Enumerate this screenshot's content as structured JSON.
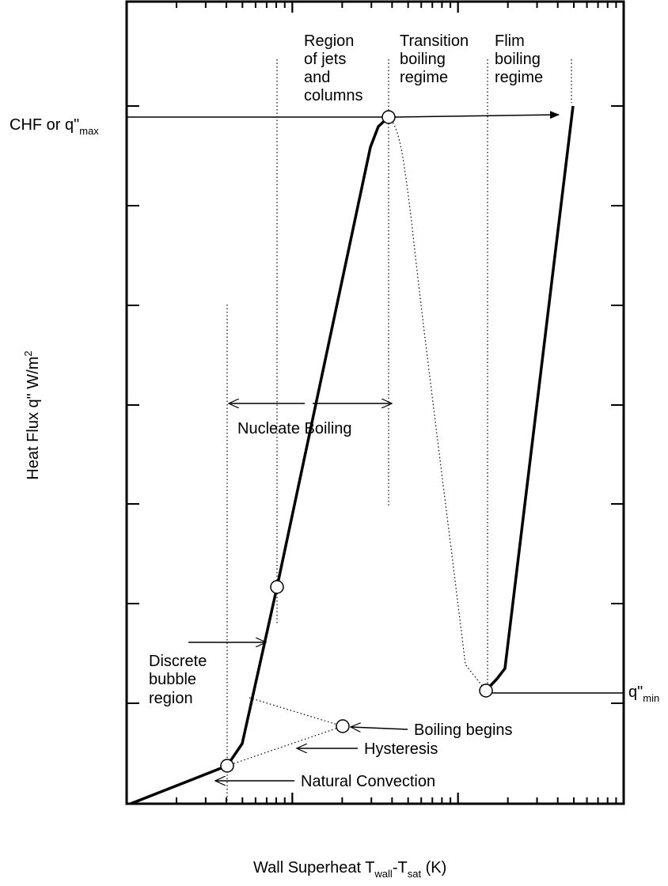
{
  "axes": {
    "x_label_main": "Wall Superheat  T",
    "x_label_sub1": "wall",
    "x_label_mid": "-T",
    "x_label_sub2": "sat",
    "x_label_tail": " (K)",
    "y_label": "Heat Flux  q\"  W/m",
    "y_label_sup": "2"
  },
  "regions": {
    "jets_line1": "Region",
    "jets_line2": "of jets",
    "jets_line3": "and",
    "jets_line4": "columns",
    "transition_line1": "Transition",
    "transition_line2": "boiling",
    "transition_line3": "regime",
    "film_line1": "Flim",
    "film_line2": "boiling",
    "film_line3": "regime",
    "nucleate": "Nucleate Boiling",
    "discrete_line1": "Discrete",
    "discrete_line2": "bubble",
    "discrete_line3": "region"
  },
  "annotations": {
    "chf_main": "CHF or q\"",
    "chf_sub": "max",
    "qmin_main": "q\"",
    "qmin_sub": "min",
    "boiling_begins": "Boiling begins",
    "hysteresis": "Hysteresis",
    "natural_convection": "Natural Convection"
  }
}
